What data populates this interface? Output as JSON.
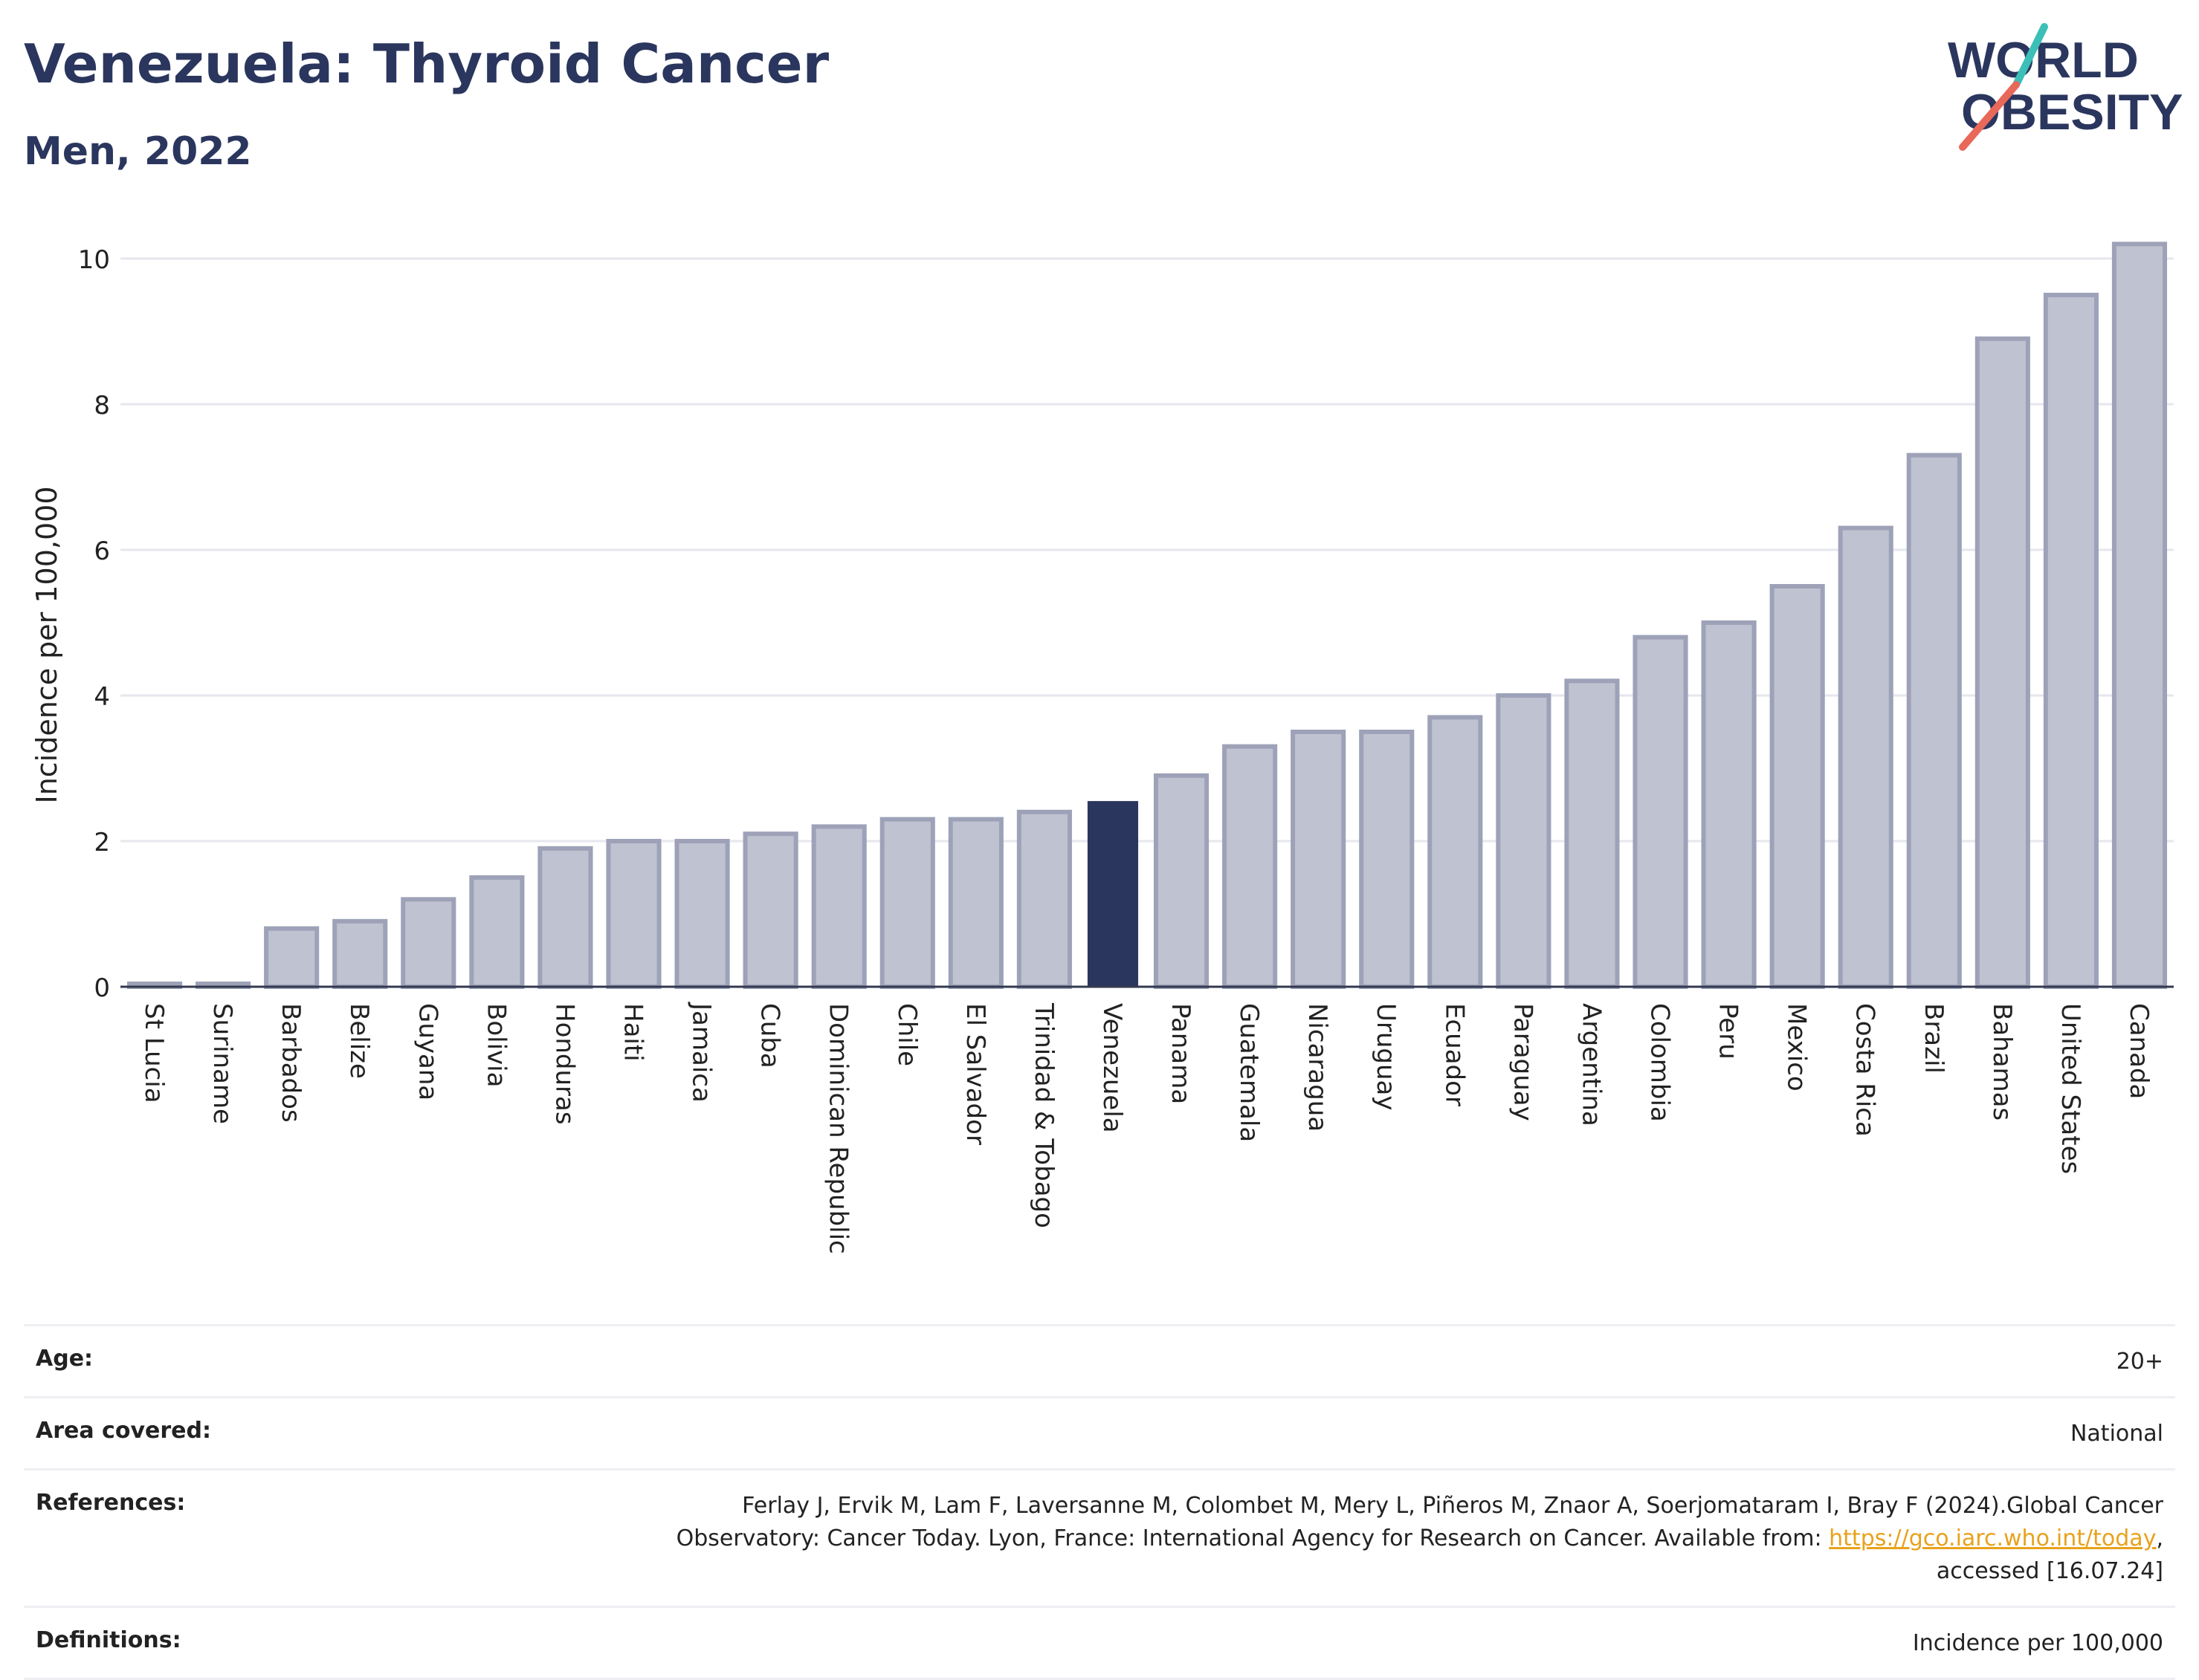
{
  "header": {
    "title": "Venezuela: Thyroid Cancer",
    "subtitle": "Men, 2022"
  },
  "logo": {
    "line1": "WORLD",
    "line2": "OBESITY",
    "stroke_colors": [
      "#3bbfb8",
      "#e8685a"
    ]
  },
  "chart_data": {
    "type": "bar",
    "title": "",
    "xlabel": "",
    "ylabel": "Incidence per 100,000",
    "ylim": [
      0,
      10.4
    ],
    "yticks": [
      0,
      2,
      4,
      6,
      8,
      10
    ],
    "grid": true,
    "highlight": "Venezuela",
    "colors": {
      "bar": "#bfc2d0",
      "bar_edge": "#9ea2b8",
      "highlight": "#2b365e",
      "grid": "#e6e7ee"
    },
    "categories": [
      "St Lucia",
      "Suriname",
      "Barbados",
      "Belize",
      "Guyana",
      "Bolivia",
      "Honduras",
      "Haiti",
      "Jamaica",
      "Cuba",
      "Dominican Republic",
      "Chile",
      "El Salvador",
      "Trinidad & Tobago",
      "Venezuela",
      "Panama",
      "Guatemala",
      "Nicaragua",
      "Uruguay",
      "Ecuador",
      "Paraguay",
      "Argentina",
      "Colombia",
      "Peru",
      "Mexico",
      "Costa Rica",
      "Brazil",
      "Bahamas",
      "United States",
      "Canada"
    ],
    "values": [
      0.0,
      0.0,
      0.8,
      0.9,
      1.2,
      1.5,
      1.9,
      2.0,
      2.0,
      2.1,
      2.2,
      2.3,
      2.3,
      2.4,
      2.55,
      2.9,
      3.3,
      3.5,
      3.5,
      3.7,
      4.0,
      4.2,
      4.8,
      5.0,
      5.5,
      6.3,
      7.3,
      8.9,
      9.5,
      10.2
    ]
  },
  "info": {
    "age_label": "Age:",
    "age_value": "20+",
    "area_label": "Area covered:",
    "area_value": "National",
    "references_label": "References:",
    "references_line1": "Ferlay J, Ervik M, Lam F, Laversanne M, Colombet M, Mery L, Piñeros M, Znaor A, Soerjomataram I, Bray F (2024).Global Cancer",
    "references_line2_prefix": "Observatory: Cancer Today. Lyon, France: International Agency for Research on Cancer. Available from: ",
    "references_link": "https://gco.iarc.who.int/today",
    "references_line2_suffix": ",",
    "references_line3": "accessed [16.07.24]",
    "definitions_label": "Definitions:",
    "definitions_value": "Incidence per 100,000"
  }
}
